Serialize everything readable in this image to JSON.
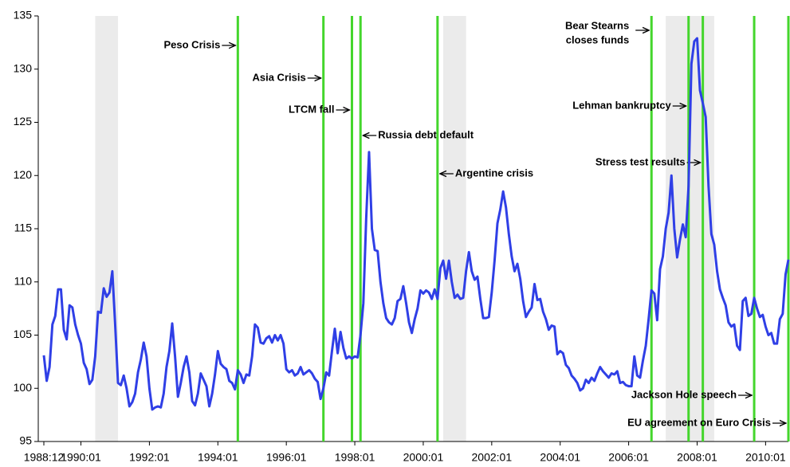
{
  "chart_data": {
    "type": "line",
    "x": [
      "1988:12",
      "1989:01",
      "1989:02",
      "1989:03",
      "1989:04",
      "1989:05",
      "1989:06",
      "1989:07",
      "1989:08",
      "1989:09",
      "1989:10",
      "1989:11",
      "1989:12",
      "1990:01",
      "1990:02",
      "1990:03",
      "1990:04",
      "1990:05",
      "1990:06",
      "1990:07",
      "1990:08",
      "1990:09",
      "1990:10",
      "1990:11",
      "1990:12",
      "1991:01",
      "1991:02",
      "1991:03",
      "1991:04",
      "1991:05",
      "1991:06",
      "1991:07",
      "1991:08",
      "1991:09",
      "1991:10",
      "1991:11",
      "1991:12",
      "1992:01",
      "1992:02",
      "1992:03",
      "1992:04",
      "1992:05",
      "1992:06",
      "1992:07",
      "1992:08",
      "1992:09",
      "1992:10",
      "1992:11",
      "1992:12",
      "1993:01",
      "1993:02",
      "1993:03",
      "1993:04",
      "1993:05",
      "1993:06",
      "1993:07",
      "1993:08",
      "1993:09",
      "1993:10",
      "1993:11",
      "1993:12",
      "1994:01",
      "1994:02",
      "1994:03",
      "1994:04",
      "1994:05",
      "1994:06",
      "1994:07",
      "1994:08",
      "1994:09",
      "1994:10",
      "1994:11",
      "1994:12",
      "1995:01",
      "1995:02",
      "1995:03",
      "1995:04",
      "1995:05",
      "1995:06",
      "1995:07",
      "1995:08",
      "1995:09",
      "1995:10",
      "1995:11",
      "1995:12",
      "1996:01",
      "1996:02",
      "1996:03",
      "1996:04",
      "1996:05",
      "1996:06",
      "1996:07",
      "1996:08",
      "1996:09",
      "1996:10",
      "1996:11",
      "1996:12",
      "1997:01",
      "1997:02",
      "1997:03",
      "1997:04",
      "1997:05",
      "1997:06",
      "1997:07",
      "1997:08",
      "1997:09",
      "1997:10",
      "1997:11",
      "1997:12",
      "1998:01",
      "1998:02",
      "1998:03",
      "1998:04",
      "1998:05",
      "1998:06",
      "1998:07",
      "1998:08",
      "1998:09",
      "1998:10",
      "1998:11",
      "1998:12",
      "1999:01",
      "1999:02",
      "1999:03",
      "1999:04",
      "1999:05",
      "1999:06",
      "1999:07",
      "1999:08",
      "1999:09",
      "1999:10",
      "1999:11",
      "1999:12",
      "2000:01",
      "2000:02",
      "2000:03",
      "2000:04",
      "2000:05",
      "2000:06",
      "2000:07",
      "2000:08",
      "2000:09",
      "2000:10",
      "2000:11",
      "2000:12",
      "2001:01",
      "2001:02",
      "2001:03",
      "2001:04",
      "2001:05",
      "2001:06",
      "2001:07",
      "2001:08",
      "2001:09",
      "2001:10",
      "2001:11",
      "2001:12",
      "2002:01",
      "2002:02",
      "2002:03",
      "2002:04",
      "2002:05",
      "2002:06",
      "2002:07",
      "2002:08",
      "2002:09",
      "2002:10",
      "2002:11",
      "2002:12",
      "2003:01",
      "2003:02",
      "2003:03",
      "2003:04",
      "2003:05",
      "2003:06",
      "2003:07",
      "2003:08",
      "2003:09",
      "2003:10",
      "2003:11",
      "2003:12",
      "2004:01",
      "2004:02",
      "2004:03",
      "2004:04",
      "2004:05",
      "2004:06",
      "2004:07",
      "2004:08",
      "2004:09",
      "2004:10",
      "2004:11",
      "2004:12",
      "2005:01",
      "2005:02",
      "2005:03",
      "2005:04",
      "2005:05",
      "2005:06",
      "2005:07",
      "2005:08",
      "2005:09",
      "2005:10",
      "2005:11",
      "2005:12",
      "2006:01",
      "2006:02",
      "2006:03",
      "2006:04",
      "2006:05",
      "2006:06",
      "2006:07",
      "2006:08",
      "2006:09",
      "2006:10",
      "2006:11",
      "2006:12",
      "2007:01",
      "2007:02",
      "2007:03",
      "2007:04",
      "2007:05",
      "2007:06",
      "2007:07",
      "2007:08",
      "2007:09",
      "2007:10",
      "2007:11",
      "2007:12",
      "2008:01",
      "2008:02",
      "2008:03",
      "2008:04",
      "2008:05",
      "2008:06",
      "2008:07",
      "2008:08",
      "2008:09",
      "2008:10",
      "2008:11",
      "2008:12",
      "2009:01",
      "2009:02",
      "2009:03",
      "2009:04",
      "2009:05",
      "2009:06",
      "2009:07",
      "2009:08",
      "2009:09",
      "2009:10",
      "2009:11",
      "2009:12",
      "2010:01",
      "2010:02",
      "2010:03",
      "2010:04",
      "2010:05",
      "2010:06",
      "2010:07",
      "2010:08",
      "2010:09"
    ],
    "values": [
      103.1,
      100.7,
      102,
      106,
      106.8,
      109.3,
      109.3,
      105.5,
      104.6,
      107.8,
      107.6,
      106,
      105,
      104.2,
      102.4,
      101.8,
      100.4,
      100.8,
      103,
      107.2,
      107.1,
      109.4,
      108.6,
      109,
      111,
      106,
      100.5,
      100.3,
      101.2,
      100,
      98.3,
      98.7,
      99.5,
      101.5,
      102.7,
      104.3,
      103,
      100,
      98,
      98.2,
      98.3,
      98.2,
      99.5,
      102,
      103.5,
      106.1,
      103,
      99.2,
      100.5,
      102,
      103,
      101.5,
      98.8,
      98.4,
      99.5,
      101.4,
      100.8,
      100.2,
      98.3,
      99.5,
      101.3,
      103.5,
      102.3,
      102,
      101.8,
      100.7,
      100.5,
      99.9,
      101.7,
      101.3,
      100.5,
      101.3,
      101.2,
      103,
      106,
      105.7,
      104.3,
      104.2,
      104.7,
      104.9,
      104.3,
      105,
      104.5,
      105,
      104.2,
      101.8,
      101.5,
      101.7,
      101.2,
      101.4,
      102,
      101.3,
      101.5,
      101.7,
      101.4,
      100.9,
      100.6,
      99,
      100,
      101.5,
      101.2,
      103.5,
      105.6,
      103.3,
      105.3,
      103.8,
      102.8,
      103,
      102.8,
      103,
      102.9,
      105,
      108,
      116,
      122.2,
      115,
      113,
      112.9,
      110,
      108,
      106.6,
      106.2,
      106,
      106.6,
      108.2,
      108.4,
      109.6,
      108,
      106.2,
      105.2,
      106.5,
      107.5,
      109.2,
      108.9,
      109.2,
      109,
      108.4,
      109.3,
      108.4,
      111.3,
      112,
      110.3,
      112,
      110,
      108.5,
      108.8,
      108.4,
      108.5,
      111,
      112.8,
      111,
      110.2,
      110.5,
      108.4,
      106.6,
      106.6,
      106.7,
      109,
      112,
      115.5,
      116.8,
      118.5,
      117,
      114.5,
      112.4,
      111,
      111.7,
      110.3,
      108.2,
      106.7,
      107.2,
      107.6,
      109.8,
      108.3,
      108.4,
      107.2,
      106.5,
      105.5,
      105.9,
      105.8,
      103.2,
      103.5,
      103.3,
      102.2,
      101.9,
      101.2,
      100.9,
      100.5,
      99.8,
      100,
      100.8,
      100.5,
      101,
      100.7,
      101.4,
      102,
      101.6,
      101.3,
      101,
      101.4,
      101.3,
      101.6,
      100.5,
      100.6,
      100.3,
      100.2,
      100.2,
      103,
      101.2,
      101,
      102.6,
      104,
      106.5,
      109.2,
      108.9,
      106.4,
      111.2,
      112.4,
      115,
      116.5,
      120,
      115,
      112.3,
      114,
      115.4,
      114.2,
      119,
      130.5,
      132.6,
      132.9,
      128,
      126.8,
      125.5,
      119,
      114.5,
      113.5,
      111,
      109.3,
      108.5,
      107.8,
      106.2,
      105.8,
      106,
      104,
      103.6,
      108.2,
      108.5,
      106.8,
      107,
      108.5,
      107.5,
      106.7,
      106.9,
      105.8,
      105,
      105.2,
      104.2,
      104.2,
      106.5,
      107,
      110.7,
      112.1
    ],
    "color": "#2f3fe6",
    "xlim": [
      "1988:12",
      "2010:09"
    ],
    "xticks": [
      "1988:12",
      "1990:01",
      "1992:01",
      "1994:01",
      "1996:01",
      "1998:01",
      "2000:01",
      "2002:01",
      "2004:01",
      "2006:01",
      "2008:01",
      "2010:01"
    ],
    "ylim": [
      95,
      135
    ],
    "yticks": [
      95,
      100,
      105,
      110,
      115,
      120,
      125,
      130,
      135
    ],
    "grid": false,
    "shaded_periods": [
      [
        "1990:06",
        "1991:02"
      ],
      [
        "2000:08",
        "2001:04"
      ],
      [
        "2007:02",
        "2008:07"
      ]
    ],
    "shade_color": "#ebebeb",
    "event_color": "#44d62c",
    "events": [
      {
        "date": "1994:08",
        "label": "Peso Crisis"
      },
      {
        "date": "1997:02",
        "label": "Asia Crisis"
      },
      {
        "date": "1997:12",
        "label": "LTCM fall"
      },
      {
        "date": "1998:03",
        "label": "Russia debt default"
      },
      {
        "date": "2000:06",
        "label": "Argentine crisis"
      },
      {
        "date": "2006:09",
        "label": [
          "Bear Stearns",
          "closes funds"
        ]
      },
      {
        "date": "2007:10",
        "label": "Lehman bankruptcy"
      },
      {
        "date": "2008:03",
        "label": "Stress test results"
      },
      {
        "date": "2009:09",
        "label": "Jackson Hole speech"
      },
      {
        "date": "2010:09",
        "label": "EU agreement on Euro Crisis"
      }
    ]
  }
}
